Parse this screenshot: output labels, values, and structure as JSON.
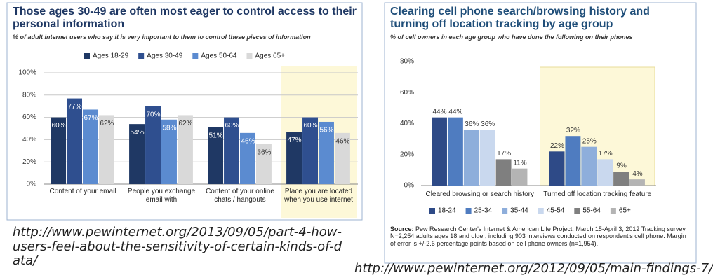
{
  "chart_data": [
    {
      "type": "bar",
      "title": "Those ages 30-49 are often most eager to control access to their personal information",
      "subtitle": "% of adult internet users who say it is very important to them to control these pieces of information",
      "categories": [
        "Content of your email",
        "People you exchange email with",
        "Content of your online chats / hangouts",
        "Place you are located when you use internet"
      ],
      "series": [
        {
          "name": "Ages 18-29",
          "color": "#1f3864",
          "values": [
            60,
            54,
            51,
            47
          ],
          "value_labels": [
            "60%",
            "54%",
            "51%",
            "47%"
          ]
        },
        {
          "name": "Ages 30-49",
          "color": "#2f4f8f",
          "values": [
            77,
            70,
            60,
            60
          ],
          "value_labels": [
            "77%",
            "70%",
            "60%",
            "60%"
          ]
        },
        {
          "name": "Ages 50-64",
          "color": "#5b8bd0",
          "values": [
            67,
            58,
            46,
            56
          ],
          "value_labels": [
            "67%",
            "58%",
            "46%",
            "56%"
          ]
        },
        {
          "name": "Ages 65+",
          "color": "#d9d9d9",
          "values": [
            62,
            62,
            36,
            46
          ],
          "value_labels": [
            "62%",
            "62%",
            "36%",
            "46%"
          ]
        }
      ],
      "ylim": [
        0,
        100
      ],
      "yticks": [
        {
          "value": 0,
          "label": "0%"
        },
        {
          "value": 20,
          "label": "20%"
        },
        {
          "value": 40,
          "label": "40%"
        },
        {
          "value": 60,
          "label": "60%"
        },
        {
          "value": 80,
          "label": "80%"
        },
        {
          "value": 100,
          "label": "100%"
        }
      ],
      "grid": true,
      "legend": "top",
      "highlight_index": 3
    },
    {
      "type": "bar",
      "title": "Clearing cell phone search/browsing history and turning off location tracking by age group",
      "subtitle": "% of cell owners in each age group who have done the following on their phones",
      "categories": [
        "Cleared browsing or search history",
        "Turned off location tracking feature"
      ],
      "series": [
        {
          "name": "18-24",
          "color": "#2e4a87",
          "values": [
            44,
            22
          ],
          "value_labels": [
            "44%",
            "22%"
          ]
        },
        {
          "name": "25-34",
          "color": "#4f7cc0",
          "values": [
            44,
            32
          ],
          "value_labels": [
            "44%",
            "32%"
          ]
        },
        {
          "name": "35-44",
          "color": "#8eaedb",
          "values": [
            36,
            25
          ],
          "value_labels": [
            "36%",
            "25%"
          ]
        },
        {
          "name": "45-54",
          "color": "#c9d8ee",
          "values": [
            36,
            17
          ],
          "value_labels": [
            "36%",
            "17%"
          ]
        },
        {
          "name": "55-64",
          "color": "#7f7f7f",
          "values": [
            17,
            9
          ],
          "value_labels": [
            "17%",
            "9%"
          ]
        },
        {
          "name": "65+",
          "color": "#b4b4b4",
          "values": [
            11,
            4
          ],
          "value_labels": [
            "11%",
            "4%"
          ]
        }
      ],
      "ylim": [
        0,
        80
      ],
      "yticks": [
        {
          "value": 0,
          "label": "0%"
        },
        {
          "value": 20,
          "label": "20%"
        },
        {
          "value": 40,
          "label": "40%"
        },
        {
          "value": 60,
          "label": "60%"
        },
        {
          "value": 80,
          "label": "80%"
        }
      ],
      "grid": false,
      "legend": "bottom",
      "highlight_index": 1,
      "note_label": "Source:",
      "note": "Pew Research Center's Internet & American Life Project, March 15-April 3, 2012 Tracking survey. N=2,254 adults ages 18 and older, including 903 interviews conducted on respondent's cell phone. Margin of error is +/-2.6 percentage points based on cell phone owners (n=1,954)."
    }
  ],
  "captions": [
    "http://www.pewinternet.org/2013/09/05/part-4-how-users-feel-about-the-sensitivity-of-certain-kinds-of-data/",
    "http://www.pewinternet.org/2012/09/05/main-findings-7/"
  ]
}
